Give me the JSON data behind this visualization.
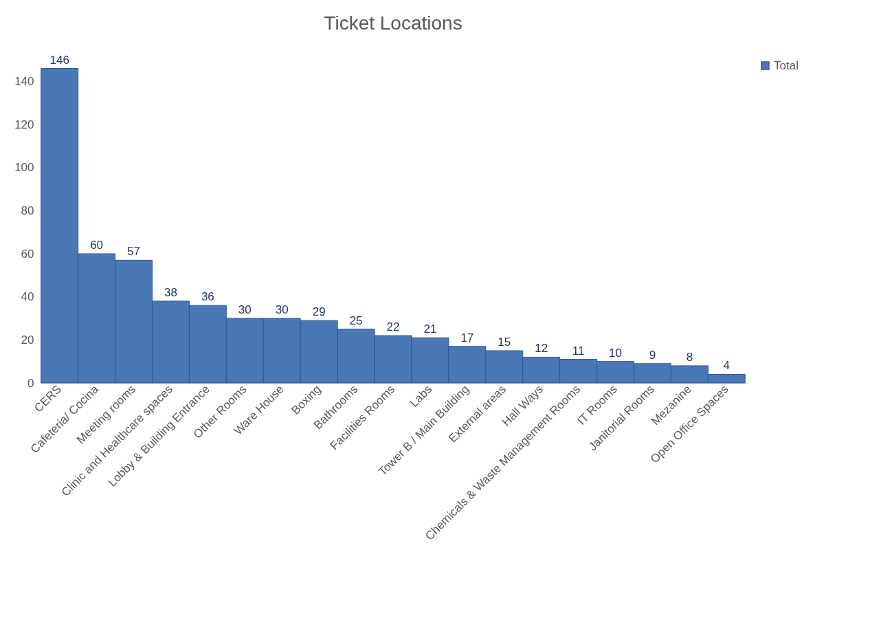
{
  "chart_data": {
    "type": "bar",
    "title": "Ticket Locations",
    "categories": [
      "CERS",
      "Cafeteria/ Cocina",
      "Meeting rooms",
      "Clinic and Healthcare spaces",
      "Lobby & Building Entrance",
      "Other Rooms",
      "Ware House",
      "Boxing",
      "Bathrooms",
      "Facilities Rooms",
      "Labs",
      "Tower B / Main Building",
      "External areas",
      "Hall Ways",
      "Chemicals & Waste Management Rooms",
      "IT Rooms",
      "Janitorial Rooms",
      "Mezanine",
      "Open Office Spaces"
    ],
    "series": [
      {
        "name": "Total",
        "color": "#4a78b5",
        "values": [
          146,
          60,
          57,
          38,
          36,
          30,
          30,
          29,
          25,
          22,
          21,
          17,
          15,
          12,
          11,
          10,
          9,
          8,
          4
        ]
      }
    ],
    "ylim": [
      0,
      150
    ],
    "yticks": [
      0,
      20,
      40,
      60,
      80,
      100,
      120,
      140
    ],
    "data_labels": true,
    "grid": false,
    "legend": "right"
  }
}
